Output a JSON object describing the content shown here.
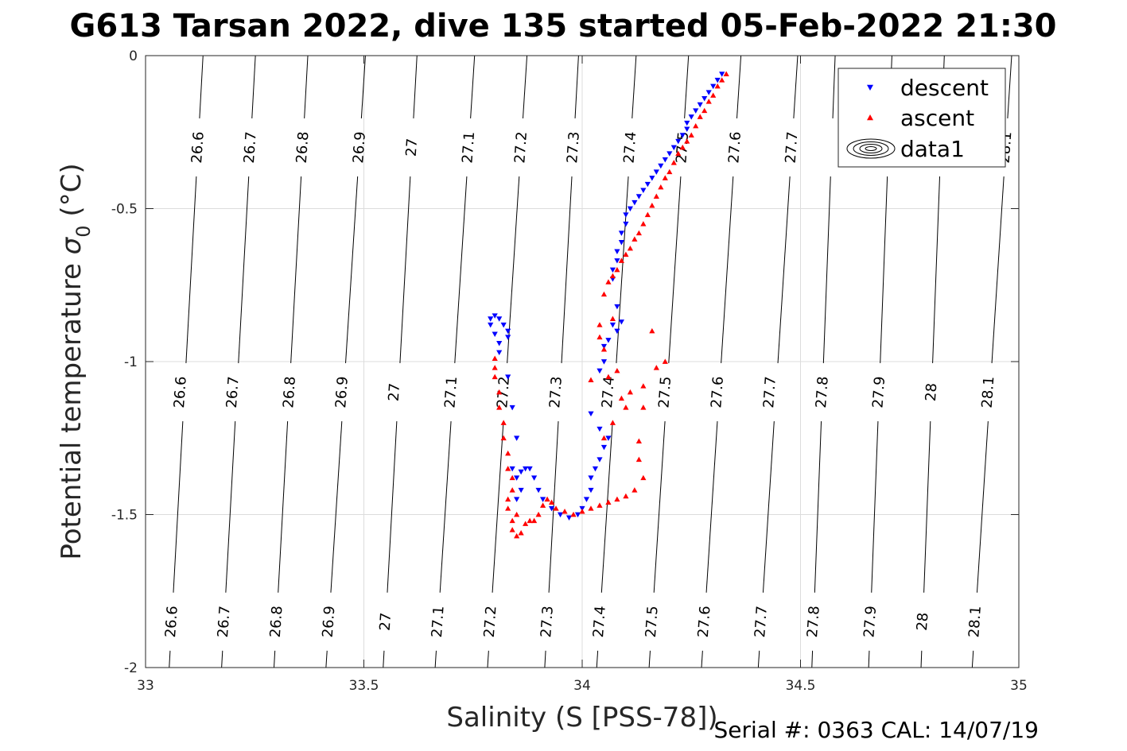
{
  "chart_data": {
    "type": "scatter",
    "title": "G613 Tarsan 2022, dive 135 started 05-Feb-2022 21:30",
    "xlabel": "Salinity (S [PSS-78])",
    "ylabel_main": "Potential temperature ",
    "ylabel_sym": "σ",
    "ylabel_sub": "0",
    "ylabel_unit": " (°C)",
    "footer": "Serial #: 0363  CAL: 14/07/19",
    "xlim": [
      33,
      35
    ],
    "ylim": [
      -2,
      0
    ],
    "xticks": [
      33,
      33.5,
      34,
      34.5,
      35
    ],
    "yticks": [
      0,
      -0.5,
      -1,
      -1.5,
      -2
    ],
    "xtick_labels": [
      "33",
      "33.5",
      "34",
      "34.5",
      "35"
    ],
    "ytick_labels": [
      "0",
      "-0.5",
      "-1",
      "-1.5",
      "-2"
    ],
    "grid": true,
    "legend_position": "top-right",
    "legend": [
      "descent",
      "ascent",
      "data1"
    ],
    "isopycnals": [
      {
        "value": "26.6",
        "label_x": [
          33.12,
          33.08,
          33.06
        ]
      },
      {
        "value": "26.7",
        "label_x": [
          33.24,
          33.2,
          33.18
        ]
      },
      {
        "value": "26.8",
        "label_x": [
          33.36,
          33.33,
          33.3
        ]
      },
      {
        "value": "26.9",
        "label_x": [
          33.49,
          33.45,
          33.42
        ]
      },
      {
        "value": "27",
        "label_x": [
          33.61,
          33.57,
          33.55
        ]
      },
      {
        "value": "27.1",
        "label_x": [
          33.74,
          33.7,
          33.67
        ]
      },
      {
        "value": "27.2",
        "label_x": [
          33.86,
          33.82,
          33.79
        ]
      },
      {
        "value": "27.3",
        "label_x": [
          33.98,
          33.94,
          33.92
        ]
      },
      {
        "value": "27.4",
        "label_x": [
          34.11,
          34.06,
          34.04
        ]
      },
      {
        "value": "27.5",
        "label_x": [
          34.23,
          34.19,
          34.16
        ]
      },
      {
        "value": "27.6",
        "label_x": [
          34.35,
          34.31,
          34.28
        ]
      },
      {
        "value": "27.7",
        "label_x": [
          34.48,
          34.43,
          34.41
        ]
      },
      {
        "value": "27.8",
        "label_x": [
          null,
          34.55,
          34.53
        ]
      },
      {
        "value": "27.9",
        "label_x": [
          null,
          34.68,
          34.66
        ]
      },
      {
        "value": "28",
        "label_x": [
          null,
          34.8,
          34.78
        ]
      },
      {
        "value": "28.1",
        "label_x": [
          34.97,
          34.93,
          34.9
        ]
      }
    ],
    "series": [
      {
        "name": "descent",
        "color": "#0000ff",
        "marker": "triangle-down",
        "points": [
          [
            34.32,
            -0.06
          ],
          [
            34.31,
            -0.08
          ],
          [
            34.3,
            -0.1
          ],
          [
            34.29,
            -0.12
          ],
          [
            34.28,
            -0.14
          ],
          [
            34.27,
            -0.16
          ],
          [
            34.26,
            -0.18
          ],
          [
            34.25,
            -0.2
          ],
          [
            34.24,
            -0.22
          ],
          [
            34.24,
            -0.24
          ],
          [
            34.23,
            -0.26
          ],
          [
            34.22,
            -0.28
          ],
          [
            34.21,
            -0.3
          ],
          [
            34.2,
            -0.32
          ],
          [
            34.19,
            -0.34
          ],
          [
            34.18,
            -0.36
          ],
          [
            34.17,
            -0.38
          ],
          [
            34.16,
            -0.4
          ],
          [
            34.15,
            -0.42
          ],
          [
            34.14,
            -0.44
          ],
          [
            34.13,
            -0.46
          ],
          [
            34.12,
            -0.48
          ],
          [
            34.11,
            -0.5
          ],
          [
            34.1,
            -0.52
          ],
          [
            34.1,
            -0.55
          ],
          [
            34.09,
            -0.58
          ],
          [
            34.09,
            -0.61
          ],
          [
            34.08,
            -0.64
          ],
          [
            34.08,
            -0.67
          ],
          [
            34.07,
            -0.7
          ],
          [
            34.07,
            -0.73
          ],
          [
            34.08,
            -0.82
          ],
          [
            34.09,
            -0.87
          ],
          [
            34.07,
            -0.88
          ],
          [
            34.08,
            -0.9
          ],
          [
            34.06,
            -0.93
          ],
          [
            34.05,
            -0.95
          ],
          [
            34.05,
            -1.0
          ],
          [
            34.04,
            -1.03
          ],
          [
            34.02,
            -1.17
          ],
          [
            34.04,
            -1.22
          ],
          [
            34.06,
            -1.25
          ],
          [
            34.05,
            -1.28
          ],
          [
            34.04,
            -1.32
          ],
          [
            34.03,
            -1.35
          ],
          [
            34.02,
            -1.38
          ],
          [
            34.02,
            -1.42
          ],
          [
            34.01,
            -1.45
          ],
          [
            34.0,
            -1.48
          ],
          [
            33.99,
            -1.5
          ],
          [
            33.97,
            -1.51
          ],
          [
            33.95,
            -1.5
          ],
          [
            33.93,
            -1.48
          ],
          [
            33.91,
            -1.45
          ],
          [
            33.9,
            -1.42
          ],
          [
            33.89,
            -1.38
          ],
          [
            33.88,
            -1.35
          ],
          [
            33.87,
            -1.35
          ],
          [
            33.86,
            -1.36
          ],
          [
            33.86,
            -1.42
          ],
          [
            33.85,
            -1.45
          ],
          [
            33.85,
            -1.38
          ],
          [
            33.84,
            -1.35
          ],
          [
            33.85,
            -1.25
          ],
          [
            33.84,
            -1.15
          ],
          [
            33.83,
            -1.05
          ],
          [
            33.81,
            -0.97
          ],
          [
            33.81,
            -0.94
          ],
          [
            33.8,
            -0.91
          ],
          [
            33.79,
            -0.88
          ],
          [
            33.79,
            -0.86
          ],
          [
            33.8,
            -0.85
          ],
          [
            33.81,
            -0.86
          ],
          [
            33.82,
            -0.88
          ],
          [
            33.83,
            -0.9
          ],
          [
            33.83,
            -0.92
          ]
        ]
      },
      {
        "name": "ascent",
        "color": "#ff0000",
        "marker": "triangle-up",
        "points": [
          [
            34.33,
            -0.06
          ],
          [
            34.32,
            -0.08
          ],
          [
            34.31,
            -0.1
          ],
          [
            34.3,
            -0.13
          ],
          [
            34.29,
            -0.15
          ],
          [
            34.28,
            -0.18
          ],
          [
            34.27,
            -0.2
          ],
          [
            34.26,
            -0.23
          ],
          [
            34.25,
            -0.26
          ],
          [
            34.24,
            -0.28
          ],
          [
            34.23,
            -0.3
          ],
          [
            34.22,
            -0.32
          ],
          [
            34.21,
            -0.35
          ],
          [
            34.2,
            -0.38
          ],
          [
            34.19,
            -0.4
          ],
          [
            34.18,
            -0.43
          ],
          [
            34.17,
            -0.46
          ],
          [
            34.16,
            -0.49
          ],
          [
            34.15,
            -0.52
          ],
          [
            34.14,
            -0.55
          ],
          [
            34.13,
            -0.58
          ],
          [
            34.12,
            -0.6
          ],
          [
            34.11,
            -0.63
          ],
          [
            34.1,
            -0.65
          ],
          [
            34.09,
            -0.67
          ],
          [
            34.08,
            -0.7
          ],
          [
            34.07,
            -0.72
          ],
          [
            34.06,
            -0.74
          ],
          [
            34.05,
            -0.78
          ],
          [
            34.04,
            -0.88
          ],
          [
            34.07,
            -0.86
          ],
          [
            34.04,
            -0.92
          ],
          [
            34.05,
            -0.96
          ],
          [
            34.02,
            -1.06
          ],
          [
            34.06,
            -1.05
          ],
          [
            34.08,
            -1.03
          ],
          [
            34.09,
            -1.12
          ],
          [
            34.1,
            -1.15
          ],
          [
            34.11,
            -1.1
          ],
          [
            34.07,
            -1.2
          ],
          [
            34.05,
            -1.25
          ],
          [
            34.13,
            -1.32
          ],
          [
            34.14,
            -1.38
          ],
          [
            34.12,
            -1.42
          ],
          [
            34.1,
            -1.44
          ],
          [
            34.08,
            -1.45
          ],
          [
            34.06,
            -1.46
          ],
          [
            34.04,
            -1.47
          ],
          [
            34.02,
            -1.48
          ],
          [
            34.0,
            -1.49
          ],
          [
            33.98,
            -1.5
          ],
          [
            33.96,
            -1.49
          ],
          [
            33.94,
            -1.48
          ],
          [
            33.93,
            -1.46
          ],
          [
            33.92,
            -1.45
          ],
          [
            33.91,
            -1.47
          ],
          [
            33.9,
            -1.5
          ],
          [
            33.89,
            -1.52
          ],
          [
            33.88,
            -1.52
          ],
          [
            33.87,
            -1.53
          ],
          [
            33.86,
            -1.56
          ],
          [
            33.85,
            -1.57
          ],
          [
            33.84,
            -1.55
          ],
          [
            33.84,
            -1.52
          ],
          [
            33.85,
            -1.5
          ],
          [
            33.83,
            -1.48
          ],
          [
            33.83,
            -1.45
          ],
          [
            33.84,
            -1.42
          ],
          [
            33.84,
            -1.38
          ],
          [
            33.83,
            -1.35
          ],
          [
            33.83,
            -1.3
          ],
          [
            33.82,
            -1.25
          ],
          [
            33.82,
            -1.2
          ],
          [
            33.81,
            -1.15
          ],
          [
            33.81,
            -1.1
          ],
          [
            33.8,
            -1.05
          ],
          [
            33.8,
            -1.02
          ],
          [
            33.8,
            -0.99
          ],
          [
            34.16,
            -0.9
          ],
          [
            34.17,
            -1.02
          ],
          [
            34.19,
            -1.0
          ],
          [
            34.13,
            -1.26
          ],
          [
            34.14,
            -1.15
          ],
          [
            34.14,
            -1.08
          ]
        ]
      }
    ]
  }
}
